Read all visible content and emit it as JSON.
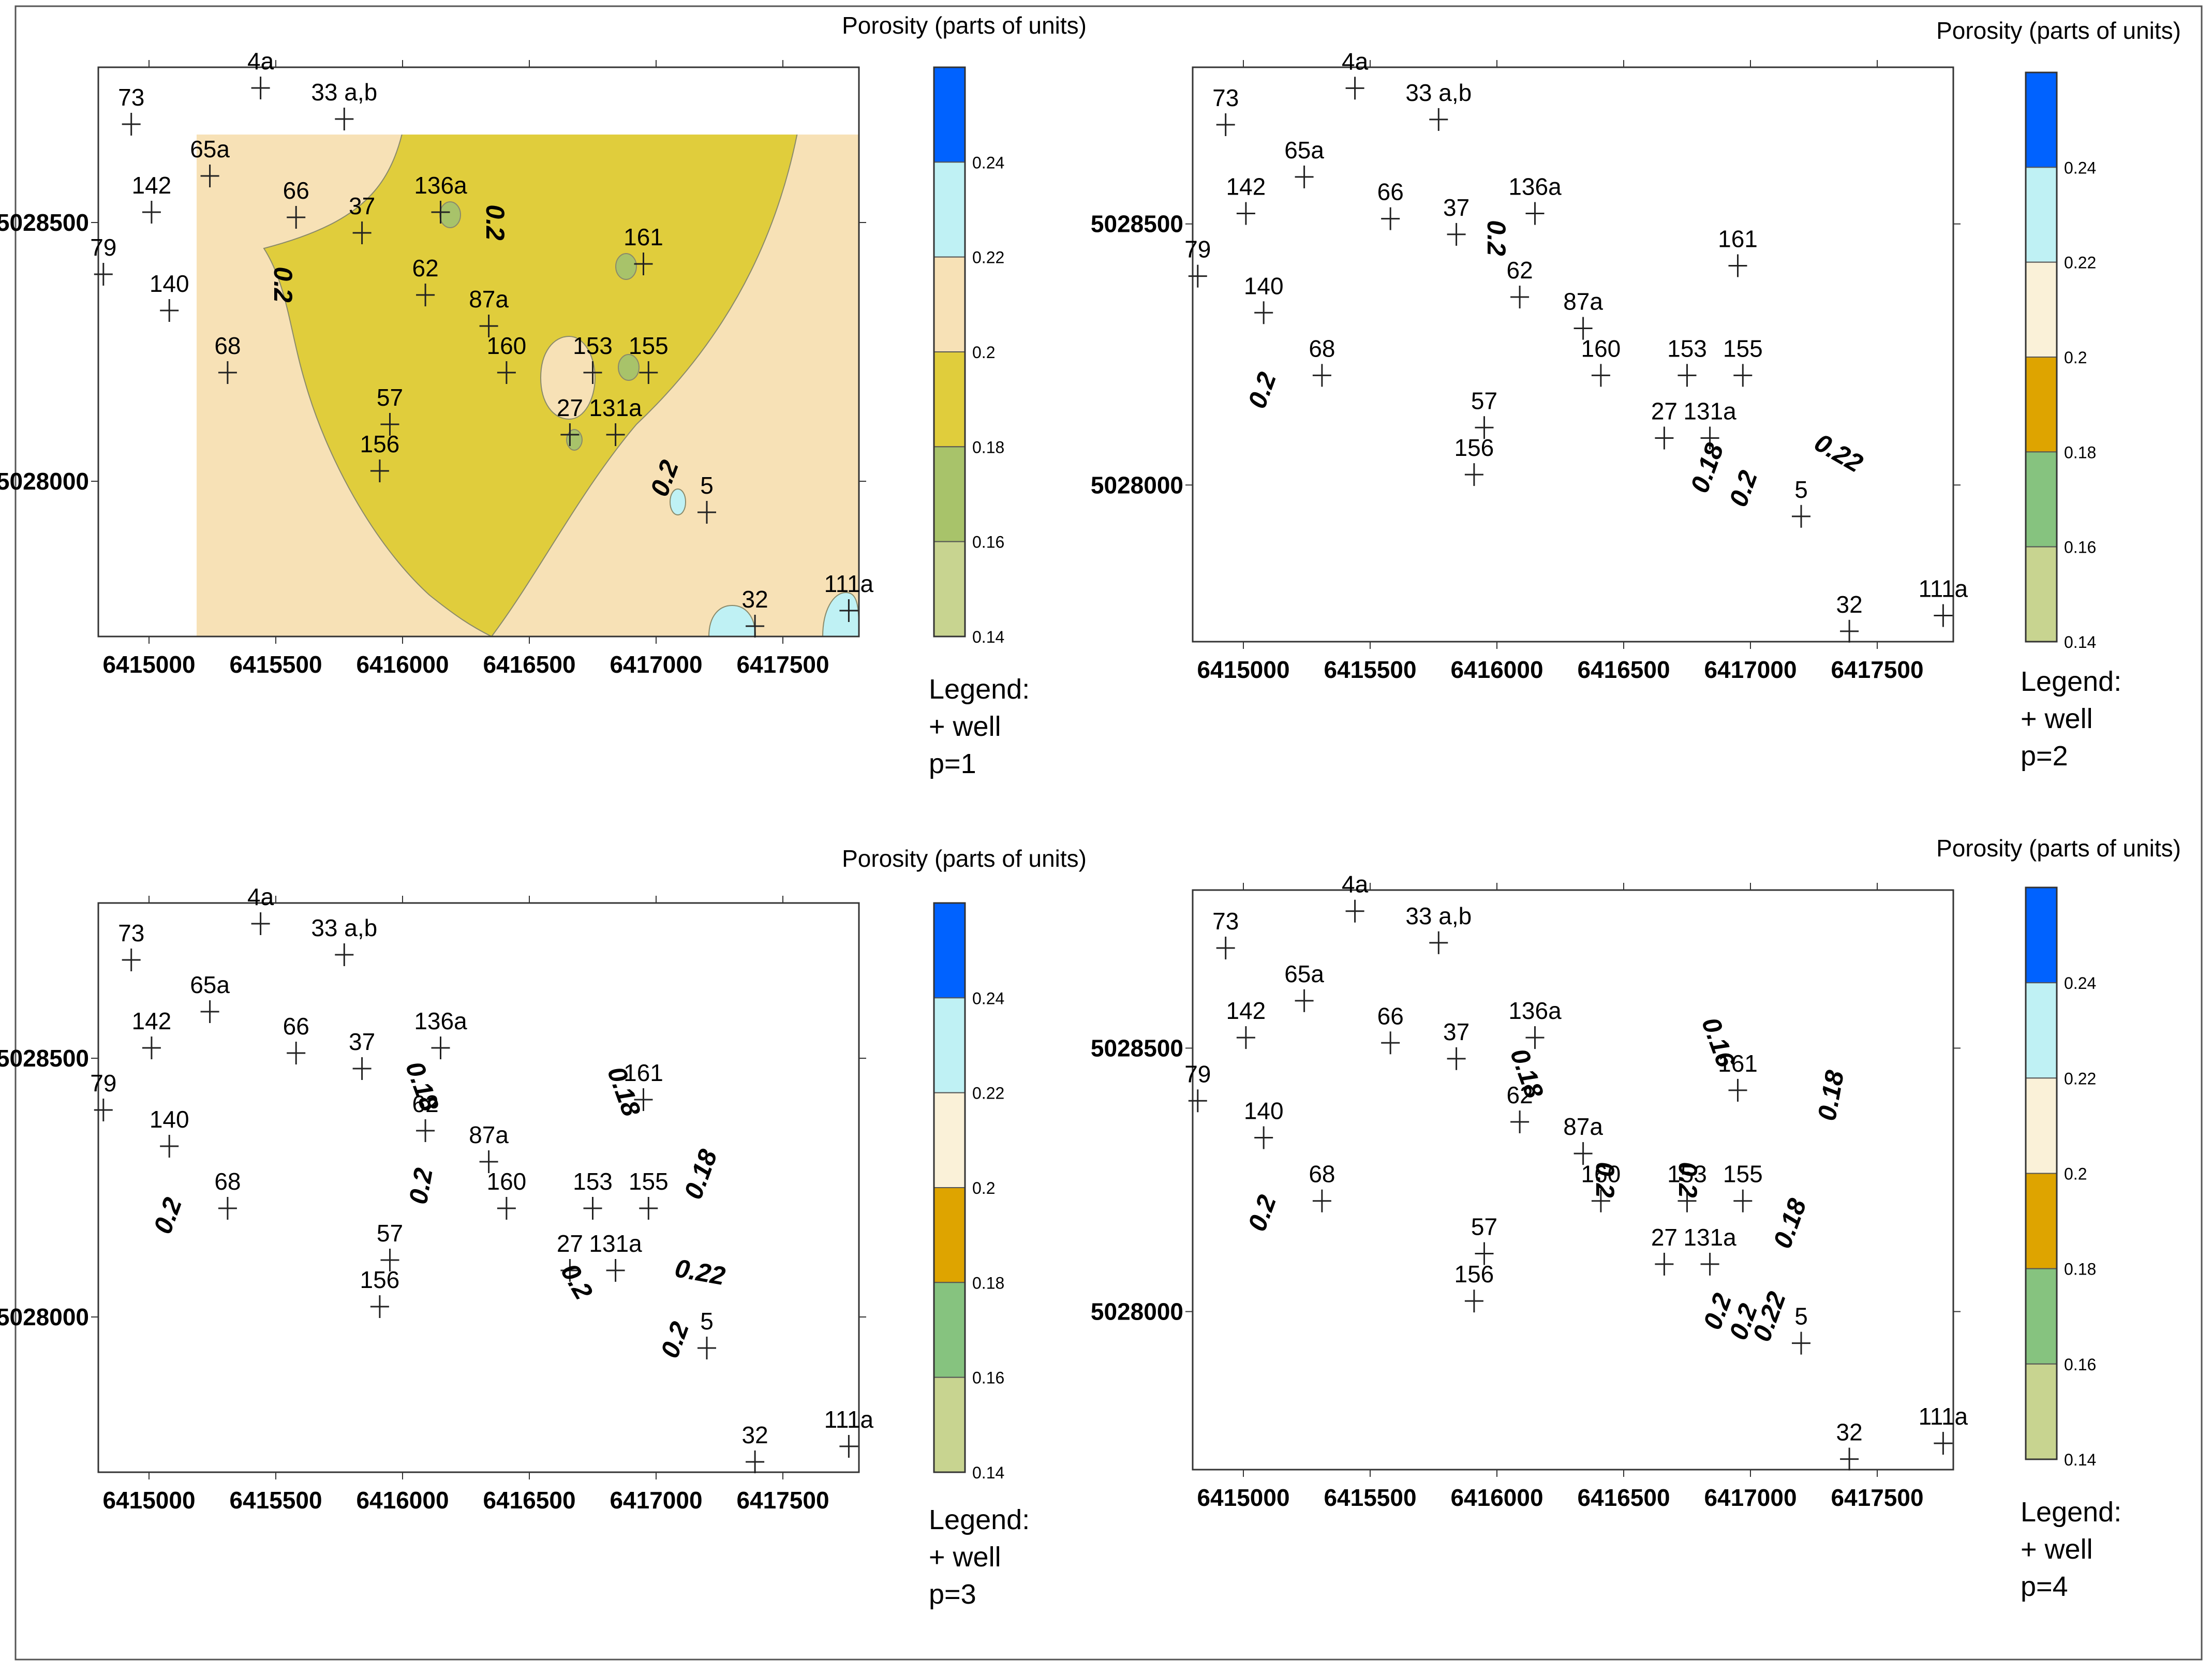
{
  "figure_title": "",
  "legend_title": "Porosity (parts of units)",
  "legend_heading": "Legend:",
  "legend_well": "+ well",
  "colorbar": {
    "labels": [
      "0.24",
      "0.22",
      "0.2",
      "0.18",
      "0.16",
      "0.14"
    ],
    "classes": [
      {
        "range": "0.14-0.16",
        "color": "#c8d490"
      },
      {
        "range": "0.16-0.18",
        "color": "#86c37f"
      },
      {
        "range": "0.18-0.20",
        "color": "#dea400"
      },
      {
        "range": "0.20-0.22",
        "color": "#faf1d8"
      },
      {
        "range": "0.22-0.24",
        "color": "#bff1f4"
      },
      {
        "range": ">0.24",
        "color": "#0062ff"
      }
    ]
  },
  "panel1_palette": {
    "0.18-0.20": "#e0cd3c",
    "0.20-0.22": "#f7e1b6",
    "0.22-0.24": "#bff1f4",
    "0.16-0.18": "#a8c36a"
  },
  "x_ticks": [
    "6415000",
    "6415500",
    "6416000",
    "6416500",
    "6417000",
    "6417500"
  ],
  "y_ticks": [
    "5028500",
    "5028000"
  ],
  "wells": [
    {
      "name": "73",
      "x": 6414930,
      "y": 5028690
    },
    {
      "name": "4a",
      "x": 6415440,
      "y": 5028760
    },
    {
      "name": "33 a,b",
      "x": 6415770,
      "y": 5028700
    },
    {
      "name": "65a",
      "x": 6415240,
      "y": 5028590
    },
    {
      "name": "142",
      "x": 6415010,
      "y": 5028520
    },
    {
      "name": "66",
      "x": 6415580,
      "y": 5028510
    },
    {
      "name": "37",
      "x": 6415840,
      "y": 5028480
    },
    {
      "name": "136a",
      "x": 6416150,
      "y": 5028520
    },
    {
      "name": "79",
      "x": 6414820,
      "y": 5028400
    },
    {
      "name": "140",
      "x": 6415080,
      "y": 5028330
    },
    {
      "name": "62",
      "x": 6416090,
      "y": 5028360
    },
    {
      "name": "161",
      "x": 6416950,
      "y": 5028420
    },
    {
      "name": "87a",
      "x": 6416340,
      "y": 5028300
    },
    {
      "name": "68",
      "x": 6415310,
      "y": 5028210
    },
    {
      "name": "160",
      "x": 6416410,
      "y": 5028210
    },
    {
      "name": "153",
      "x": 6416750,
      "y": 5028210
    },
    {
      "name": "155",
      "x": 6416970,
      "y": 5028210
    },
    {
      "name": "57",
      "x": 6415950,
      "y": 5028110
    },
    {
      "name": "27",
      "x": 6416660,
      "y": 5028090
    },
    {
      "name": "131a",
      "x": 6416840,
      "y": 5028090
    },
    {
      "name": "156",
      "x": 6415910,
      "y": 5028020
    },
    {
      "name": "5",
      "x": 6417200,
      "y": 5027940
    },
    {
      "name": "32",
      "x": 6417390,
      "y": 5027720
    },
    {
      "name": "111a",
      "x": 6417760,
      "y": 5027750
    }
  ],
  "panels": [
    {
      "p_label": "p=1",
      "contour_labels": [
        "0.2",
        "0.2",
        "0.2"
      ]
    },
    {
      "p_label": "p=2",
      "contour_labels": [
        "0.2",
        "0.2",
        "0.18",
        "0.2",
        "0.22"
      ]
    },
    {
      "p_label": "p=3",
      "contour_labels": [
        "0.2",
        "0.18",
        "0.2",
        "0.18",
        "0.18",
        "0.2",
        "0.22",
        "0.2"
      ]
    },
    {
      "p_label": "p=4",
      "contour_labels": [
        "0.2",
        "0.18",
        "0.16",
        "0.18",
        "0.2",
        "0.2",
        "0.18",
        "0.2",
        "0.22",
        "0.2"
      ]
    }
  ]
}
